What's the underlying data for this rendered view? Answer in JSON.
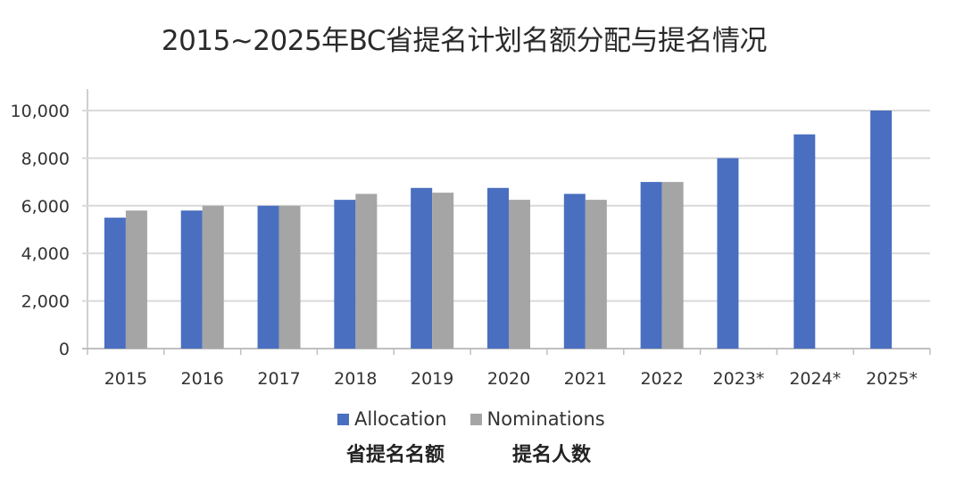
{
  "title": "2015~2025年BC省提名计划名额分配与提名情况",
  "legend": {
    "allocation_label": "Allocation",
    "nominations_label": "Nominations",
    "allocation_cn": "省提名名额",
    "nominations_cn": "提名人数"
  },
  "colors": {
    "allocation": "#4A6FC0",
    "nominations": "#A5A5A5",
    "grid": "#D9D9D9",
    "axis": "#BFBFBF"
  },
  "chart_data": {
    "type": "bar",
    "title": "2015~2025年BC省提名计划名额分配与提名情况",
    "xlabel": "",
    "ylabel": "",
    "ylim": [
      0,
      10000
    ],
    "yticks": [
      0,
      2000,
      4000,
      6000,
      8000,
      10000
    ],
    "ytick_labels": [
      "0",
      "2,000",
      "4,000",
      "6,000",
      "8,000",
      "10,000"
    ],
    "grid": true,
    "legend_position": "bottom",
    "categories": [
      "2015",
      "2016",
      "2017",
      "2018",
      "2019",
      "2020",
      "2021",
      "2022",
      "2023*",
      "2024*",
      "2025*"
    ],
    "series": [
      {
        "name": "Allocation",
        "name_cn": "省提名名额",
        "values": [
          5500,
          5800,
          6000,
          6250,
          6750,
          6750,
          6500,
          7000,
          8000,
          9000,
          10000
        ]
      },
      {
        "name": "Nominations",
        "name_cn": "提名人数",
        "values": [
          5800,
          6000,
          6000,
          6500,
          6550,
          6250,
          6250,
          7000,
          null,
          null,
          null
        ]
      }
    ]
  }
}
